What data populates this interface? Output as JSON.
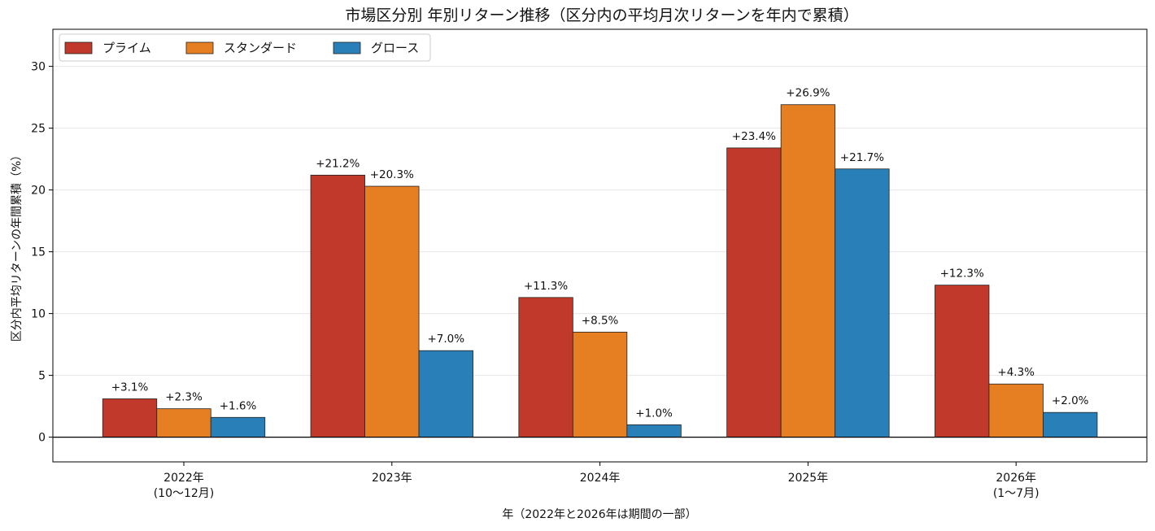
{
  "chart_data": {
    "type": "bar",
    "title": "市場区分別 年別リターン推移（区分内の平均月次リターンを年内で累積）",
    "xlabel": "年（2022年と2026年は期間の一部）",
    "ylabel": "区分内平均リターンの年間累積（%）",
    "categories": [
      [
        "2022年",
        "(10〜12月)"
      ],
      [
        "2023年"
      ],
      [
        "2024年"
      ],
      [
        "2025年"
      ],
      [
        "2026年",
        "(1〜7月)"
      ]
    ],
    "series": [
      {
        "name": "プライム",
        "color": "#c0392b",
        "values": [
          3.1,
          21.2,
          11.3,
          23.4,
          12.3
        ],
        "labels": [
          "+3.1%",
          "+21.2%",
          "+11.3%",
          "+23.4%",
          "+12.3%"
        ]
      },
      {
        "name": "スタンダード",
        "color": "#e67e22",
        "values": [
          2.3,
          20.3,
          8.5,
          26.9,
          4.3
        ],
        "labels": [
          "+2.3%",
          "+20.3%",
          "+8.5%",
          "+26.9%",
          "+4.3%"
        ]
      },
      {
        "name": "グロース",
        "color": "#2980b9",
        "values": [
          1.6,
          7.0,
          1.0,
          21.7,
          2.0
        ],
        "labels": [
          "+1.6%",
          "+7.0%",
          "+1.0%",
          "+21.7%",
          "+2.0%"
        ]
      }
    ],
    "ylim": [
      -2,
      33
    ],
    "yticks": [
      "0",
      "5",
      "10",
      "15",
      "20",
      "25",
      "30"
    ],
    "grid": "y",
    "legend": "top-left"
  }
}
